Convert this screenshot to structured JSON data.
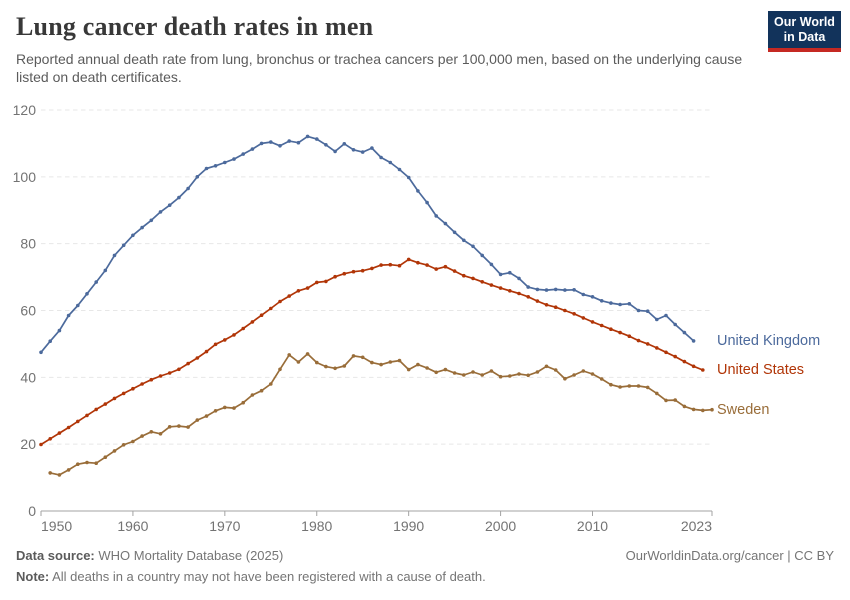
{
  "header": {
    "title": "Lung cancer death rates in men",
    "subtitle": "Reported annual death rate from lung, bronchus or trachea cancers per 100,000 men, based on the underlying cause listed on death certificates.",
    "logo": {
      "line1": "Our World",
      "line2": "in Data",
      "bg_color": "#12335b",
      "bar_color": "#c52923"
    }
  },
  "chart_data": {
    "type": "line",
    "title": "Lung cancer death rates in men",
    "xlabel": "",
    "ylabel": "",
    "x_range": [
      1950,
      2023
    ],
    "y_range": [
      0,
      120
    ],
    "x_ticks": [
      1950,
      1960,
      1970,
      1980,
      1990,
      2000,
      2010,
      2023
    ],
    "y_ticks": [
      0,
      20,
      40,
      60,
      80,
      100,
      120
    ],
    "grid": "horizontal-dashed",
    "grid_color": "#e7e7e7",
    "axis_color": "#a3a3a3",
    "tick_text_color": "#737373",
    "legend_position": "right-of-line-end",
    "series": [
      {
        "name": "United Kingdom",
        "color": "#4C6A9C",
        "start_year": 1950,
        "values": [
          47.5,
          50.8,
          54.0,
          58.5,
          61.5,
          65.0,
          68.5,
          72.0,
          76.5,
          79.5,
          82.5,
          84.8,
          87.0,
          89.5,
          91.5,
          93.8,
          96.5,
          100.0,
          102.5,
          103.3,
          104.3,
          105.3,
          106.8,
          108.3,
          110.0,
          110.4,
          109.3,
          110.7,
          110.2,
          112.1,
          111.3,
          109.6,
          107.6,
          109.9,
          108.1,
          107.4,
          108.6,
          105.8,
          104.3,
          102.2,
          99.8,
          95.8,
          92.3,
          88.3,
          86.0,
          83.4,
          81.0,
          79.2,
          76.5,
          73.8,
          70.8,
          71.3,
          69.6,
          67.0,
          66.3,
          66.1,
          66.3,
          66.1,
          66.2,
          64.8,
          64.1,
          62.9,
          62.2,
          61.8,
          62.0,
          60.0,
          59.8,
          57.3,
          58.5,
          55.8,
          53.4,
          50.9
        ]
      },
      {
        "name": "United States",
        "color": "#B13507",
        "start_year": 1950,
        "values": [
          19.9,
          21.6,
          23.3,
          25.0,
          26.8,
          28.6,
          30.4,
          32.0,
          33.7,
          35.2,
          36.6,
          38.0,
          39.3,
          40.4,
          41.3,
          42.4,
          44.1,
          45.8,
          47.7,
          49.9,
          51.2,
          52.7,
          54.6,
          56.6,
          58.6,
          60.6,
          62.7,
          64.3,
          65.9,
          66.7,
          68.4,
          68.7,
          70.1,
          71.0,
          71.6,
          71.9,
          72.6,
          73.6,
          73.7,
          73.4,
          75.3,
          74.3,
          73.6,
          72.4,
          73.1,
          71.8,
          70.4,
          69.6,
          68.6,
          67.6,
          66.7,
          65.9,
          65.1,
          64.1,
          62.8,
          61.7,
          61.0,
          60.0,
          59.0,
          57.8,
          56.6,
          55.5,
          54.4,
          53.4,
          52.3,
          51.0,
          50.0,
          48.8,
          47.5,
          46.2,
          44.7,
          43.3,
          42.2
        ]
      },
      {
        "name": "Sweden",
        "color": "#996D39",
        "start_year": 1951,
        "values": [
          11.4,
          10.8,
          12.3,
          14.0,
          14.5,
          14.3,
          16.1,
          18.0,
          19.8,
          20.8,
          22.4,
          23.7,
          23.1,
          25.2,
          25.4,
          25.1,
          27.2,
          28.4,
          30.0,
          31.0,
          30.8,
          32.4,
          34.7,
          36.0,
          38.0,
          42.4,
          46.7,
          44.6,
          47.0,
          44.4,
          43.2,
          42.7,
          43.4,
          46.4,
          46.0,
          44.4,
          43.8,
          44.6,
          45.0,
          42.3,
          43.8,
          42.8,
          41.5,
          42.3,
          41.3,
          40.7,
          41.6,
          40.7,
          41.9,
          40.2,
          40.4,
          41.0,
          40.6,
          41.6,
          43.3,
          42.2,
          39.6,
          40.7,
          41.9,
          41.0,
          39.5,
          37.8,
          37.1,
          37.4,
          37.4,
          37.0,
          35.2,
          33.1,
          33.2,
          31.3,
          30.4,
          30.1,
          30.3
        ]
      }
    ]
  },
  "footer": {
    "source_label": "Data source:",
    "source_text": "WHO Mortality Database (2025)",
    "note_label": "Note:",
    "note_text": "All deaths in a country may not have been registered with a cause of death.",
    "link": "OurWorldinData.org/cancer | CC BY"
  }
}
